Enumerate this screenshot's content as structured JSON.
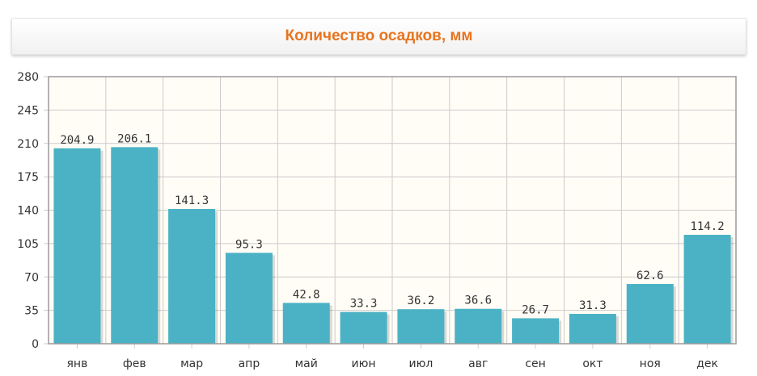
{
  "chart_data": {
    "type": "bar",
    "title": "Количество осадков, мм",
    "xlabel": "",
    "ylabel": "",
    "categories": [
      "янв",
      "фев",
      "мар",
      "апр",
      "май",
      "июн",
      "июл",
      "авг",
      "сен",
      "окт",
      "ноя",
      "дек"
    ],
    "values": [
      204.9,
      206.1,
      141.3,
      95.3,
      42.8,
      33.3,
      36.2,
      36.6,
      26.7,
      31.3,
      62.6,
      114.2
    ],
    "value_labels": [
      "204.9",
      "206.1",
      "141.3",
      "95.3",
      "42.8",
      "33.3",
      "36.2",
      "36.6",
      "26.7",
      "31.3",
      "62.6",
      "114.2"
    ],
    "ylim": [
      0,
      280
    ],
    "yticks": [
      "0",
      "35",
      "70",
      "105",
      "140",
      "175",
      "210",
      "245",
      "280"
    ],
    "grid": true,
    "legend": "none",
    "colors": {
      "bar": "#4bb2c5",
      "plot_background": "#fffdf6",
      "grid": "#cccccc",
      "title": "#e8741e",
      "axis_border": "#999999"
    }
  }
}
